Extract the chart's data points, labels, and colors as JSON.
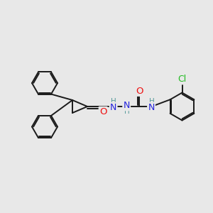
{
  "background_color": "#e8e8e8",
  "bond_color": "#1a1a1a",
  "atom_colors": {
    "O": "#ee1111",
    "N": "#2222dd",
    "Cl": "#22bb22",
    "H_label": "#559999",
    "C": "#1a1a1a"
  },
  "bond_width": 1.4,
  "figsize": [
    3.0,
    3.0
  ],
  "dpi": 100,
  "xlim": [
    0,
    10
  ],
  "ylim": [
    0,
    10
  ]
}
